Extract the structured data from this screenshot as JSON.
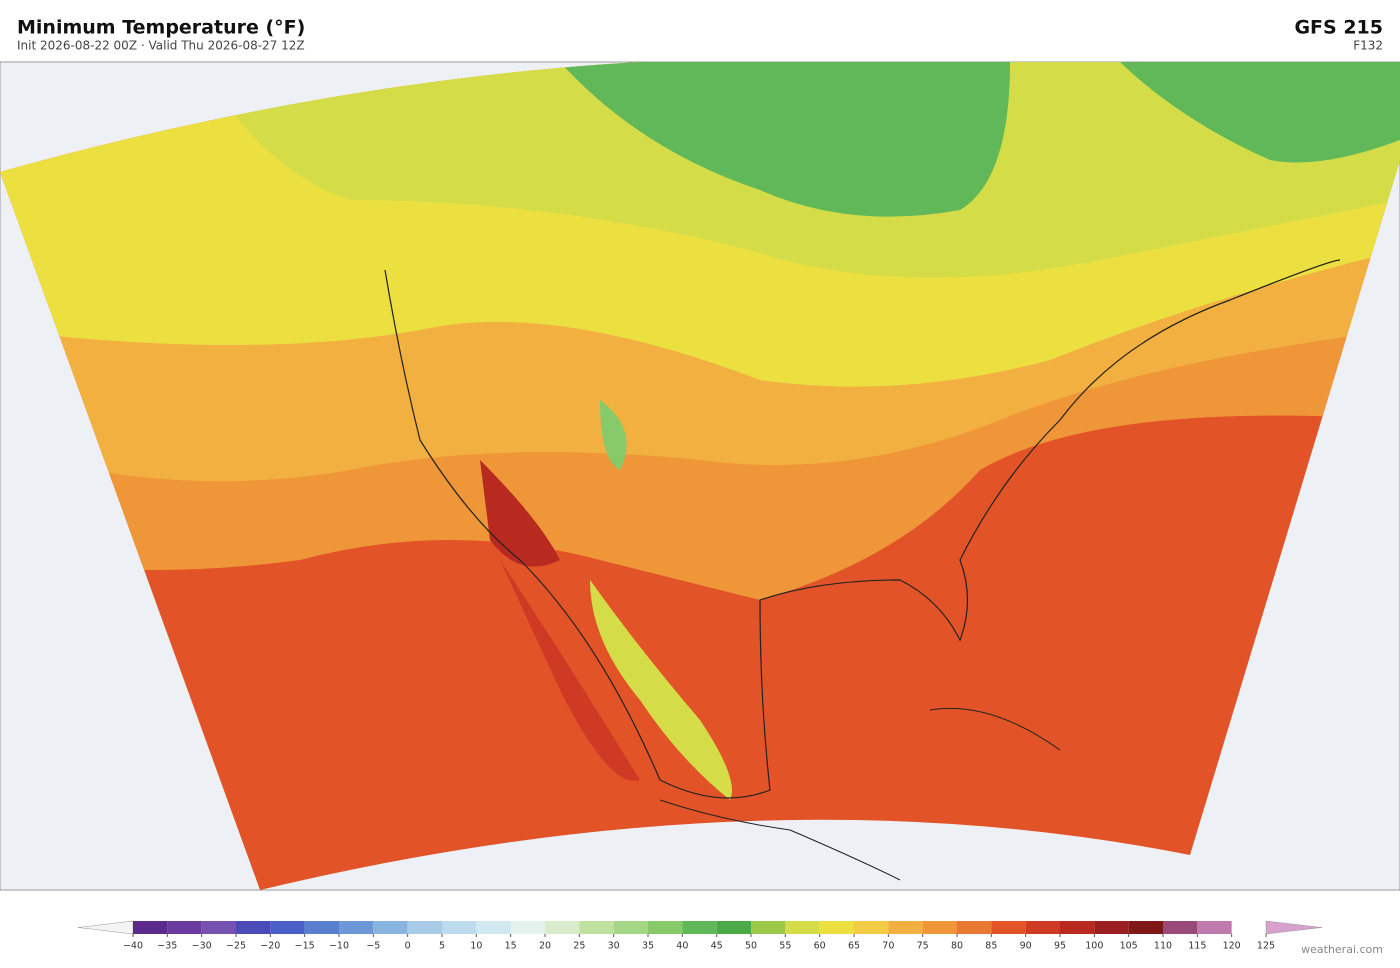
{
  "header": {
    "title": "Minimum Temperature  (°F)",
    "subtitle": "Init 2026-08-22 00Z  ·  Valid Thu 2026-08-27 12Z",
    "model": "GFS  215",
    "forecast_hour": "F132"
  },
  "colorbar": {
    "ticks": [
      {
        "value": -40,
        "label": "−40"
      },
      {
        "value": -35,
        "label": "−35"
      },
      {
        "value": -30,
        "label": "−30"
      },
      {
        "value": -25,
        "label": "−25"
      },
      {
        "value": -20,
        "label": "−20"
      },
      {
        "value": -15,
        "label": "−15"
      },
      {
        "value": -10,
        "label": "−10"
      },
      {
        "value": -5,
        "label": "−5"
      },
      0,
      5,
      10,
      15,
      20,
      25,
      30,
      35,
      40,
      45,
      50,
      55,
      60,
      65,
      70,
      75,
      80,
      85,
      90,
      95,
      100,
      105,
      110,
      115,
      120,
      125
    ],
    "colors": [
      "#5b2a8c",
      "#6a3aa0",
      "#7552b0",
      "#4a4ab8",
      "#4a5fc8",
      "#5a7ed0",
      "#6f97d8",
      "#8ab4e0",
      "#a8cce8",
      "#bcdcee",
      "#d0e8f0",
      "#e4f2ee",
      "#d8eccc",
      "#c0e2a0",
      "#a4d886",
      "#86ca6a",
      "#60b858",
      "#4aaa48",
      "#9cc848",
      "#d4dc48",
      "#ece040",
      "#f2cc44",
      "#f2b040",
      "#ee9638",
      "#e87834",
      "#e25428",
      "#cf3a24",
      "#b82a20",
      "#9a1e1e",
      "#801818",
      "#9a4a78",
      "#c07ab0",
      "#d8a0cc"
    ]
  },
  "footer": {
    "credit": "weatherai.com"
  }
}
